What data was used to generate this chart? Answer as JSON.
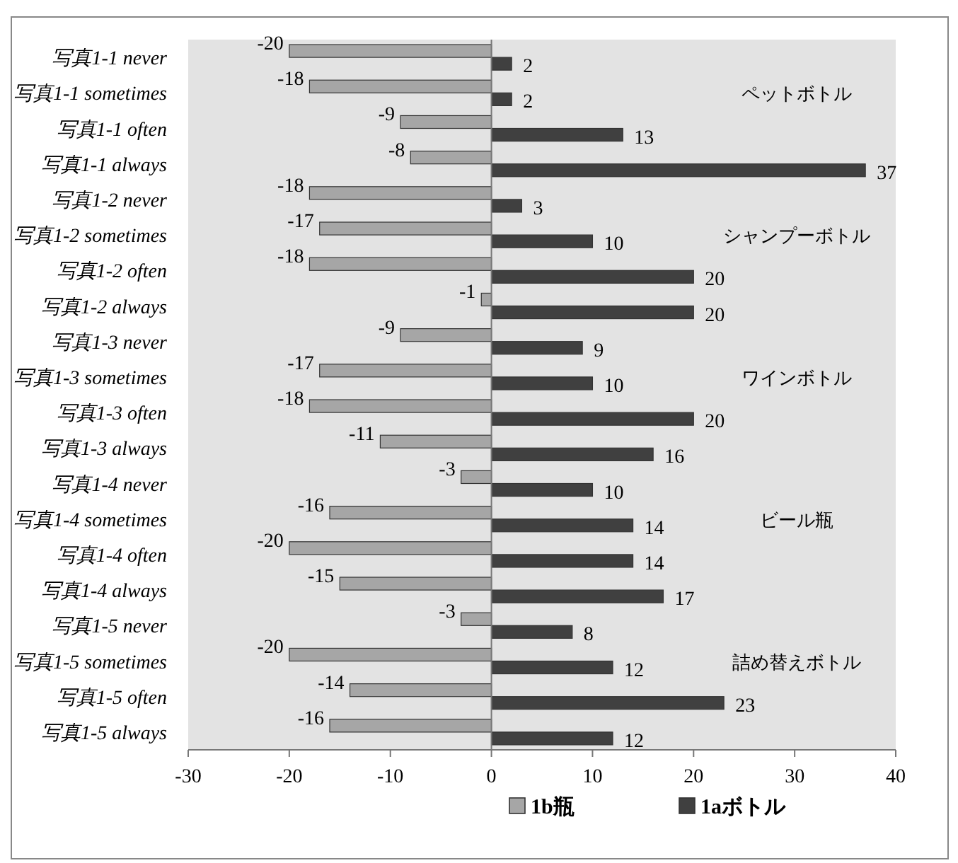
{
  "chart_data": {
    "type": "bar",
    "orientation": "horizontal",
    "categories": [
      "写真1-1 never",
      "写真1-1 sometimes",
      "写真1-1 often",
      "写真1-1 always",
      "写真1-2 never",
      "写真1-2 sometimes",
      "写真1-2 often",
      "写真1-2 always",
      "写真1-3 never",
      "写真1-3 sometimes",
      "写真1-3 often",
      "写真1-3 always",
      "写真1-4 never",
      "写真1-4 sometimes",
      "写真1-4 often",
      "写真1-4 always",
      "写真1-5 never",
      "写真1-5 sometimes",
      "写真1-5 often",
      "写真1-5 always"
    ],
    "series": [
      {
        "name": "1b瓶",
        "color": "#a6a6a6",
        "values": [
          -20,
          -18,
          -9,
          -8,
          -18,
          -17,
          -18,
          -1,
          -9,
          -17,
          -18,
          -11,
          -3,
          -16,
          -20,
          -15,
          -3,
          -20,
          -14,
          -16
        ]
      },
      {
        "name": "1aボトル",
        "color": "#404040",
        "values": [
          2,
          2,
          13,
          37,
          3,
          10,
          20,
          20,
          9,
          10,
          20,
          16,
          10,
          14,
          14,
          17,
          8,
          12,
          23,
          12
        ]
      }
    ],
    "xlim": [
      -30,
      40
    ],
    "xticks": [
      -30,
      -20,
      -10,
      0,
      10,
      20,
      30,
      40
    ],
    "data_labels": true,
    "legend": "bottom",
    "annotations": [
      "ペットボトル",
      "シャンプーボトル",
      "ワインボトル",
      "ビール瓶",
      "詰め替えボトル"
    ]
  }
}
